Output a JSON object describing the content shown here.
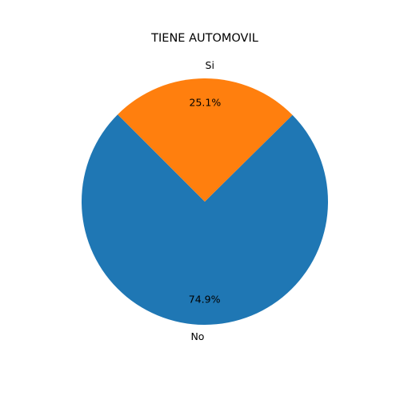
{
  "chart_data": {
    "type": "pie",
    "title": "TIENE AUTOMOVIL",
    "slices": [
      {
        "label": "No",
        "value": 74.9,
        "pct_label": "74.9%",
        "color": "#1f77b4"
      },
      {
        "label": "Si",
        "value": 25.1,
        "pct_label": "25.1%",
        "color": "#ff7f0e"
      }
    ],
    "start_angle_deg": 135,
    "direction": "counterclockwise"
  }
}
